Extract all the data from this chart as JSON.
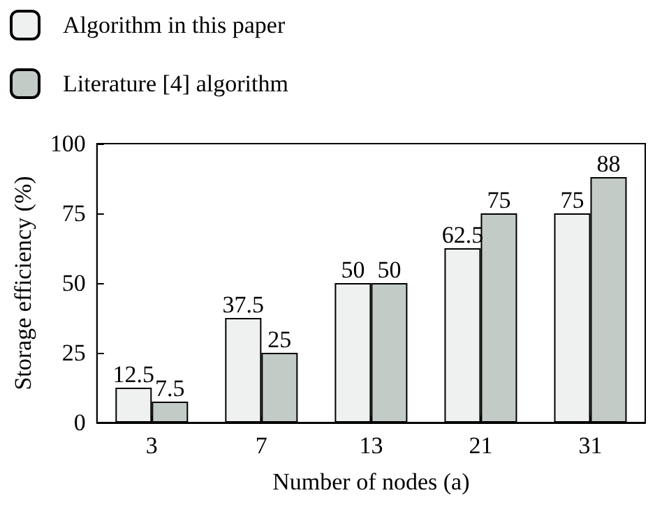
{
  "chart_data": {
    "type": "bar",
    "xlabel": "Number of nodes (a)",
    "ylabel": "Storage efficiency (%)",
    "categories": [
      "3",
      "7",
      "13",
      "21",
      "31"
    ],
    "series": [
      {
        "name": "Algorithm in this paper",
        "color": "#eef1ef",
        "values": [
          12.5,
          37.5,
          50,
          62.5,
          75
        ]
      },
      {
        "name": "Literature [4] algorithm",
        "color": "#c3cbc7",
        "values": [
          7.5,
          25,
          50,
          75,
          88
        ]
      }
    ],
    "ylim": [
      0,
      100
    ],
    "yticks": [
      0,
      25,
      50,
      75,
      100
    ],
    "data_labels": true,
    "legend": "top left",
    "grid": false
  }
}
